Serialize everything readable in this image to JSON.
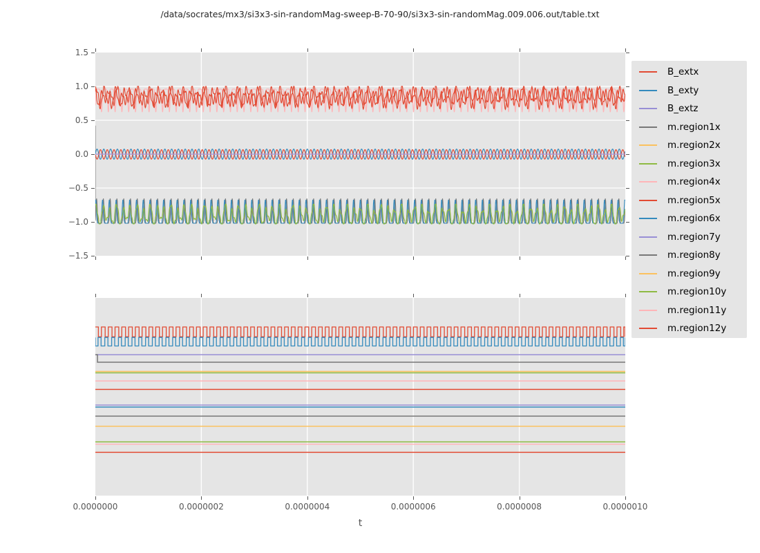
{
  "title": "/data/socrates/mx3/si3x3-sin-randomMag-sweep-B-70-90/si3x3-sin-randomMag.009.006.out/table.txt",
  "xlabel": "t",
  "colors": {
    "figure_bg": "#FFFFFF",
    "axes_bg": "#E5E5E5",
    "grid": "#FFFFFF",
    "tick": "#555555",
    "tick_label": "#555555",
    "title_text": "#262626",
    "legend_bg": "#E5E5E5",
    "cycle_red": "#E24A33",
    "cycle_blue": "#348ABD",
    "cycle_purple": "#988ED5",
    "cycle_gray": "#777777",
    "cycle_yellow": "#FBC15E",
    "cycle_green": "#8EBA42",
    "cycle_pink": "#FFB5B8"
  },
  "legend": {
    "items": [
      {
        "label": "B_extx",
        "color": "#E24A33"
      },
      {
        "label": "B_exty",
        "color": "#348ABD"
      },
      {
        "label": "B_extz",
        "color": "#988ED5"
      },
      {
        "label": "m.region1x",
        "color": "#777777"
      },
      {
        "label": "m.region2x",
        "color": "#FBC15E"
      },
      {
        "label": "m.region3x",
        "color": "#8EBA42"
      },
      {
        "label": "m.region4x",
        "color": "#FFB5B8"
      },
      {
        "label": "m.region5x",
        "color": "#E24A33"
      },
      {
        "label": "m.region6x",
        "color": "#348ABD"
      },
      {
        "label": "m.region7y",
        "color": "#988ED5"
      },
      {
        "label": "m.region8y",
        "color": "#777777"
      },
      {
        "label": "m.region9y",
        "color": "#FBC15E"
      },
      {
        "label": "m.region10y",
        "color": "#8EBA42"
      },
      {
        "label": "m.region11y",
        "color": "#FFB5B8"
      },
      {
        "label": "m.region12y",
        "color": "#E24A33"
      }
    ]
  },
  "chart_data": [
    {
      "type": "line",
      "title": "",
      "xlabel": "t",
      "xlim": [
        0,
        1e-06
      ],
      "ylim": [
        -1.5,
        1.5
      ],
      "x_ticks": [
        0,
        2e-07,
        4e-07,
        6e-07,
        8e-07,
        1e-06
      ],
      "y_ticks": [
        1.5,
        1.0,
        0.5,
        0.0,
        -0.5,
        -1.0,
        -1.5
      ],
      "y_tick_labels": [
        "1.5",
        "1.0",
        "0.5",
        "0.0",
        "−0.5",
        "−1.0",
        "−1.5"
      ],
      "grid_x": [
        2e-07,
        4e-07,
        6e-07,
        8e-07
      ],
      "grid_y": [
        -1.0,
        -0.5,
        0.0,
        0.5,
        1.0
      ],
      "grid": true,
      "legend_position": "outside-right",
      "description": "Oscillating signals: red band between ~0.68 and 1.0 with pink dips to ~0.62; blue/red sine pair of amplitude ~0.07 about 0 with flat purple line at 0; green band between ~-1.03 and ~-0.75 with blue spikes to ~-0.67 and gray spike tips to ~-0.66; gray initial transient at t=0 from ~0.4 down to ~-1.0",
      "series": [
        {
          "name": "m.region4x",
          "color": "#FFB5B8",
          "kind": "spikes",
          "base": 0.96,
          "amp": -0.34,
          "pow": 5,
          "p": 1.28e-08,
          "ph": 2.1,
          "w": 1.2
        },
        {
          "name": "B_extx",
          "color": "#E24A33",
          "kind": "quasi",
          "c": 0.85,
          "a1": 0.105,
          "a2": 0.05,
          "a3": 0.04,
          "p": 1.28e-08,
          "ph": 0,
          "min": 0.67,
          "max": 1.0,
          "w": 1.2
        },
        {
          "name": "m.region5x",
          "color": "#E24A33",
          "kind": "quasi",
          "c": 0.84,
          "a1": 0.1,
          "a2": 0.05,
          "a3": 0.035,
          "p": 1.28e-08,
          "ph": 1.9,
          "min": 0.66,
          "max": 0.995,
          "w": 1.2
        },
        {
          "name": "m.region1x",
          "color": "#777777",
          "kind": "spikes",
          "base": -1.02,
          "amp": 0.365,
          "pow": 6,
          "p": 1.28e-08,
          "ph": 0.4,
          "init_y": 0.42,
          "w": 1.1
        },
        {
          "name": "m.region6x",
          "color": "#348ABD",
          "kind": "spikes",
          "base": -1.02,
          "amp": 0.35,
          "pow": 5,
          "p": 1.28e-08,
          "ph": 1.2,
          "w": 1.1
        },
        {
          "name": "m.region3x",
          "color": "#8EBA42",
          "kind": "quasi",
          "c": -0.9,
          "a1": 0.115,
          "a2": 0.05,
          "a3": 0.035,
          "p": 1.28e-08,
          "ph": 0.7,
          "min": -1.03,
          "max": -0.74,
          "w": 1.2
        },
        {
          "name": "B_exty",
          "color": "#348ABD",
          "kind": "sine",
          "c": 0.0,
          "a": 0.075,
          "p": 1.28e-08,
          "ph": 0,
          "w": 1.2
        },
        {
          "name": "mid-red",
          "color": "#E24A33",
          "kind": "sine",
          "c": -0.004,
          "a": 0.07,
          "p": 1.28e-08,
          "ph": 3.1,
          "w": 1.2
        },
        {
          "name": "B_extz",
          "color": "#988ED5",
          "kind": "flat",
          "y": 0.0,
          "w": 1.3
        }
      ]
    },
    {
      "type": "line",
      "title": "",
      "xlabel": "t",
      "xlim": [
        0,
        1e-06
      ],
      "y_frac": true,
      "x_ticks": [
        0,
        2e-07,
        4e-07,
        6e-07,
        8e-07,
        1e-06
      ],
      "x_tick_labels": [
        "0.0000000",
        "0.0000002",
        "0.0000004",
        "0.0000006",
        "0.0000008",
        "0.0000010"
      ],
      "grid_x": [
        2e-07,
        4e-07,
        6e-07,
        8e-07
      ],
      "grid": true,
      "description": "No y tick labels shown; levels given as fraction of axes height from top. Two square waves at top, thirteen constant lines below; gray line has initial step at t=0.",
      "series": [
        {
          "name": "square-red",
          "color": "#E24A33",
          "kind": "square",
          "hi": 0.147,
          "lo": 0.196,
          "p": 1.28e-08,
          "duty": 0.55,
          "ph": 0.1,
          "w": 1.3
        },
        {
          "name": "square-blue",
          "color": "#348ABD",
          "kind": "square",
          "hi": 0.2,
          "lo": 0.243,
          "p": 1.28e-08,
          "duty": 0.45,
          "ph": 0.6,
          "w": 1.3
        },
        {
          "name": "flat-purple-a",
          "color": "#988ED5",
          "kind": "flat",
          "y": 0.287,
          "w": 1.5
        },
        {
          "name": "flat-gray-a",
          "color": "#777777",
          "kind": "flat",
          "y": 0.325,
          "init_y": 0.287,
          "w": 1.5
        },
        {
          "name": "flat-yellow-a",
          "color": "#FBC15E",
          "kind": "flat",
          "y": 0.372,
          "w": 1.5
        },
        {
          "name": "flat-green-a",
          "color": "#8EBA42",
          "kind": "flat",
          "y": 0.379,
          "w": 1.5
        },
        {
          "name": "flat-pink-a",
          "color": "#FFB5B8",
          "kind": "flat",
          "y": 0.42,
          "w": 1.5
        },
        {
          "name": "flat-red-a",
          "color": "#E24A33",
          "kind": "flat",
          "y": 0.463,
          "w": 1.5
        },
        {
          "name": "flat-purple-b",
          "color": "#988ED5",
          "kind": "flat",
          "y": 0.542,
          "w": 1.5
        },
        {
          "name": "flat-blue-b",
          "color": "#348ABD",
          "kind": "flat",
          "y": 0.552,
          "w": 1.5
        },
        {
          "name": "flat-gray-b",
          "color": "#777777",
          "kind": "flat",
          "y": 0.598,
          "w": 1.5
        },
        {
          "name": "flat-yellow-b",
          "color": "#FBC15E",
          "kind": "flat",
          "y": 0.649,
          "w": 1.5
        },
        {
          "name": "flat-green-b",
          "color": "#8EBA42",
          "kind": "flat",
          "y": 0.728,
          "w": 1.5
        },
        {
          "name": "flat-pink-b",
          "color": "#FFB5B8",
          "kind": "flat",
          "y": 0.74,
          "w": 1.5
        },
        {
          "name": "flat-red-b",
          "color": "#E24A33",
          "kind": "flat",
          "y": 0.781,
          "w": 1.5
        }
      ]
    }
  ]
}
